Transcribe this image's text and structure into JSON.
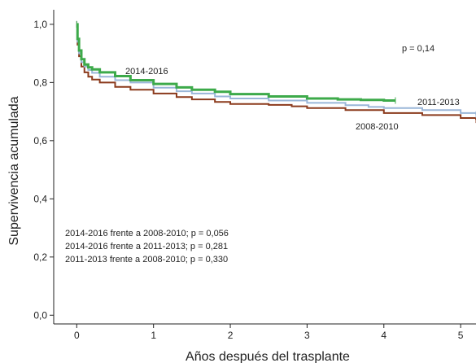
{
  "chart_data": {
    "type": "line",
    "subtype": "kaplan-meier survival curves",
    "xlabel": "Años después del trasplante",
    "ylabel": "Supervivencia acumulada",
    "xlim": [
      -0.3,
      5.2
    ],
    "ylim": [
      -0.03,
      1.05
    ],
    "x_ticks": [
      0,
      1,
      2,
      3,
      4,
      5
    ],
    "x_tick_labels": [
      "0",
      "1",
      "2",
      "3",
      "4",
      "5"
    ],
    "y_ticks": [
      0.0,
      0.2,
      0.4,
      0.6,
      0.8,
      1.0
    ],
    "y_tick_labels": [
      "0,0",
      "0,2",
      "0,4",
      "0,6",
      "0,8",
      "1,0"
    ],
    "grid": false,
    "legend": "none (series labeled inline)",
    "series": [
      {
        "name": "2008-2010",
        "color": "#8b3a1c",
        "points": [
          [
            0,
            1.0
          ],
          [
            0.01,
            0.93
          ],
          [
            0.03,
            0.89
          ],
          [
            0.06,
            0.855
          ],
          [
            0.1,
            0.835
          ],
          [
            0.15,
            0.82
          ],
          [
            0.2,
            0.81
          ],
          [
            0.3,
            0.8
          ],
          [
            0.5,
            0.785
          ],
          [
            0.7,
            0.775
          ],
          [
            1.0,
            0.762
          ],
          [
            1.3,
            0.75
          ],
          [
            1.5,
            0.742
          ],
          [
            1.8,
            0.733
          ],
          [
            2.0,
            0.726
          ],
          [
            2.5,
            0.723
          ],
          [
            2.8,
            0.718
          ],
          [
            3.0,
            0.712
          ],
          [
            3.5,
            0.705
          ],
          [
            4.0,
            0.695
          ],
          [
            4.5,
            0.688
          ],
          [
            5.0,
            0.678
          ],
          [
            5.2,
            0.672
          ]
        ]
      },
      {
        "name": "2011-2013",
        "color": "#9ab6d8",
        "points": [
          [
            0,
            1.0
          ],
          [
            0.01,
            0.94
          ],
          [
            0.03,
            0.9
          ],
          [
            0.06,
            0.87
          ],
          [
            0.1,
            0.855
          ],
          [
            0.15,
            0.843
          ],
          [
            0.2,
            0.833
          ],
          [
            0.3,
            0.82
          ],
          [
            0.5,
            0.808
          ],
          [
            0.7,
            0.8
          ],
          [
            1.0,
            0.782
          ],
          [
            1.3,
            0.77
          ],
          [
            1.5,
            0.762
          ],
          [
            1.8,
            0.752
          ],
          [
            2.0,
            0.745
          ],
          [
            2.5,
            0.738
          ],
          [
            3.0,
            0.73
          ],
          [
            3.5,
            0.722
          ],
          [
            3.8,
            0.716
          ],
          [
            4.0,
            0.712
          ],
          [
            4.5,
            0.705
          ],
          [
            5.0,
            0.695
          ],
          [
            5.2,
            0.69
          ]
        ]
      },
      {
        "name": "2014-2016",
        "color": "#3daa4a",
        "points": [
          [
            0,
            1.0
          ],
          [
            0.01,
            0.95
          ],
          [
            0.03,
            0.91
          ],
          [
            0.06,
            0.88
          ],
          [
            0.1,
            0.862
          ],
          [
            0.15,
            0.852
          ],
          [
            0.2,
            0.845
          ],
          [
            0.3,
            0.835
          ],
          [
            0.5,
            0.822
          ],
          [
            0.7,
            0.808
          ],
          [
            1.0,
            0.795
          ],
          [
            1.3,
            0.783
          ],
          [
            1.5,
            0.775
          ],
          [
            1.8,
            0.768
          ],
          [
            2.0,
            0.76
          ],
          [
            2.5,
            0.752
          ],
          [
            3.0,
            0.745
          ],
          [
            3.4,
            0.742
          ],
          [
            3.7,
            0.74
          ],
          [
            4.0,
            0.738
          ],
          [
            4.15,
            0.738
          ]
        ]
      }
    ],
    "annotations": {
      "p_overall": "p = 0,14",
      "label_2014": "2014-2016",
      "label_2011": "2011-2013",
      "label_2008": "2008-2010",
      "comparisons": [
        "2014-2016 frente a 2008-2010; p = 0,056",
        "2014-2016 frente a 2011-2013; p = 0,281",
        "2011-2013 frente a 2008-2010; p = 0,330"
      ]
    }
  }
}
